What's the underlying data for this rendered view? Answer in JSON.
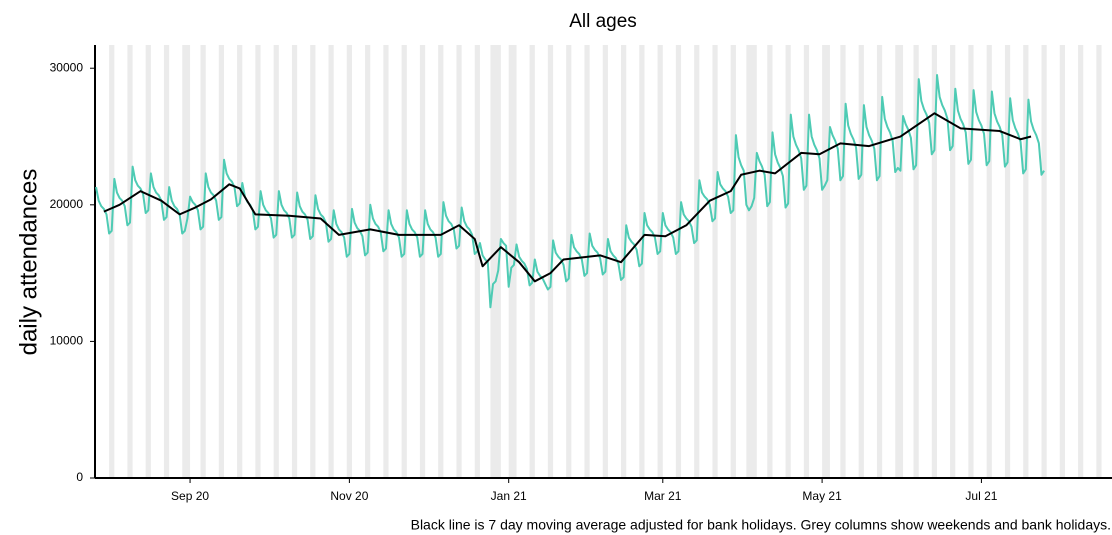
{
  "chart_data": {
    "type": "line",
    "title": "All ages",
    "ylabel": "daily attendances",
    "caption": "Black line is 7 day moving average adjusted for bank holidays. Grey columns show weekends and bank holidays.",
    "xlim": [
      -36.4,
      353
    ],
    "xticks": [
      {
        "value": 0,
        "label": "Sep 20"
      },
      {
        "value": 61,
        "label": "Nov 20"
      },
      {
        "value": 122,
        "label": "Jan 21"
      },
      {
        "value": 181,
        "label": "Mar 21"
      },
      {
        "value": 242,
        "label": "May 21"
      },
      {
        "value": 303,
        "label": "Jul 21"
      }
    ],
    "ylim": [
      0,
      31700
    ],
    "yticks": [
      0,
      10000,
      20000,
      30000
    ],
    "grid": false,
    "shade_color": "#ebebeb",
    "shaded_columns": [
      [
        -31,
        -29
      ],
      [
        -24,
        -22
      ],
      [
        -17,
        -15
      ],
      [
        -10,
        -8
      ],
      [
        -3,
        0
      ],
      [
        4,
        6
      ],
      [
        11,
        13
      ],
      [
        18,
        20
      ],
      [
        25,
        27
      ],
      [
        32,
        34
      ],
      [
        39,
        41
      ],
      [
        46,
        48
      ],
      [
        53,
        55
      ],
      [
        60,
        62
      ],
      [
        67,
        69
      ],
      [
        74,
        76
      ],
      [
        81,
        83
      ],
      [
        88,
        90
      ],
      [
        95,
        97
      ],
      [
        102,
        104
      ],
      [
        109,
        111
      ],
      [
        115,
        119
      ],
      [
        122,
        125
      ],
      [
        130,
        132
      ],
      [
        137,
        139
      ],
      [
        144,
        146
      ],
      [
        151,
        153
      ],
      [
        158,
        160
      ],
      [
        165,
        167
      ],
      [
        172,
        174
      ],
      [
        179,
        181
      ],
      [
        186,
        188
      ],
      [
        193,
        195
      ],
      [
        200,
        202
      ],
      [
        207,
        209
      ],
      [
        213,
        217
      ],
      [
        221,
        223
      ],
      [
        228,
        230
      ],
      [
        235,
        237
      ],
      [
        242,
        245
      ],
      [
        249,
        251
      ],
      [
        256,
        258
      ],
      [
        263,
        265
      ],
      [
        270,
        273
      ],
      [
        277,
        279
      ],
      [
        284,
        286
      ],
      [
        291,
        293
      ],
      [
        298,
        300
      ],
      [
        305,
        307
      ],
      [
        312,
        314
      ],
      [
        319,
        321
      ],
      [
        326,
        328
      ],
      [
        333,
        335
      ],
      [
        340,
        342
      ],
      [
        347,
        349
      ]
    ],
    "series": [
      {
        "color": "#4ecbb4",
        "x": [
          -36,
          -35,
          -34,
          -33,
          -32,
          -31,
          -30,
          -29,
          -28,
          -27,
          -26,
          -25,
          -24,
          -23,
          -22,
          -21,
          -20,
          -19,
          -18,
          -17,
          -16,
          -15,
          -14,
          -13,
          -12,
          -11,
          -10,
          -9,
          -8,
          -7,
          -6,
          -5,
          -4,
          -3,
          -2,
          -1,
          0,
          1,
          2,
          3,
          4,
          5,
          6,
          7,
          8,
          9,
          10,
          11,
          12,
          13,
          14,
          15,
          16,
          17,
          18,
          19,
          20,
          21,
          22,
          23,
          24,
          25,
          26,
          27,
          28,
          29,
          30,
          31,
          32,
          33,
          34,
          35,
          36,
          37,
          38,
          39,
          40,
          41,
          42,
          43,
          44,
          45,
          46,
          47,
          48,
          49,
          50,
          51,
          52,
          53,
          54,
          55,
          56,
          57,
          58,
          59,
          60,
          61,
          62,
          63,
          64,
          65,
          66,
          67,
          68,
          69,
          70,
          71,
          72,
          73,
          74,
          75,
          76,
          77,
          78,
          79,
          80,
          81,
          82,
          83,
          84,
          85,
          86,
          87,
          88,
          89,
          90,
          91,
          92,
          93,
          94,
          95,
          96,
          97,
          98,
          99,
          100,
          101,
          102,
          103,
          104,
          105,
          106,
          107,
          108,
          109,
          110,
          111,
          112,
          113,
          114,
          115,
          116,
          117,
          118,
          119,
          120,
          121,
          122,
          123,
          124,
          125,
          126,
          127,
          128,
          129,
          130,
          131,
          132,
          133,
          134,
          135,
          136,
          137,
          138,
          139,
          140,
          141,
          142,
          143,
          144,
          145,
          146,
          147,
          148,
          149,
          150,
          151,
          152,
          153,
          154,
          155,
          156,
          157,
          158,
          159,
          160,
          161,
          162,
          163,
          164,
          165,
          166,
          167,
          168,
          169,
          170,
          171,
          172,
          173,
          174,
          175,
          176,
          177,
          178,
          179,
          180,
          181,
          182,
          183,
          184,
          185,
          186,
          187,
          188,
          189,
          190,
          191,
          192,
          193,
          194,
          195,
          196,
          197,
          198,
          199,
          200,
          201,
          202,
          203,
          204,
          205,
          206,
          207,
          208,
          209,
          210,
          211,
          212,
          213,
          214,
          215,
          216,
          217,
          218,
          219,
          220,
          221,
          222,
          223,
          224,
          225,
          226,
          227,
          228,
          229,
          230,
          231,
          232,
          233,
          234,
          235,
          236,
          237,
          238,
          239,
          240,
          241,
          242,
          243,
          244,
          245,
          246,
          247,
          248,
          249,
          250,
          251,
          252,
          253,
          254,
          255,
          256,
          257,
          258,
          259,
          260,
          261,
          262,
          263,
          264,
          265,
          266,
          267,
          268,
          269,
          270,
          271,
          272,
          273,
          274,
          275,
          276,
          277,
          278,
          279,
          280,
          281,
          282,
          283,
          284,
          285,
          286,
          287,
          288,
          289,
          290,
          291,
          292,
          293,
          294,
          295,
          296,
          297,
          298,
          299,
          300,
          301,
          302,
          303,
          304,
          305,
          306,
          307,
          308,
          309,
          310,
          311,
          312,
          313,
          314,
          315,
          316,
          317,
          318,
          319,
          320,
          321,
          322,
          323,
          324,
          325,
          326,
          327
        ],
        "values": [
          21300,
          20300,
          19900,
          19700,
          19300,
          17900,
          18100,
          21900,
          20900,
          20500,
          20300,
          19900,
          18500,
          18700,
          22800,
          21800,
          21400,
          21200,
          20800,
          19400,
          19600,
          22300,
          21300,
          20900,
          20700,
          20300,
          18900,
          19100,
          21300,
          20300,
          19900,
          19700,
          19300,
          17900,
          18100,
          19000,
          20600,
          20200,
          20000,
          19600,
          18200,
          18400,
          22300,
          21300,
          20900,
          20700,
          20300,
          18900,
          19100,
          23300,
          22300,
          21900,
          21700,
          21300,
          19900,
          20100,
          21600,
          20600,
          20200,
          20000,
          19600,
          18200,
          18400,
          21000,
          20000,
          19600,
          19400,
          19000,
          17600,
          17800,
          21000,
          20000,
          19600,
          19400,
          19000,
          17600,
          17800,
          20900,
          19900,
          19500,
          19300,
          18900,
          17500,
          17700,
          20700,
          19700,
          19300,
          19100,
          18700,
          17300,
          17500,
          19600,
          18600,
          18200,
          18000,
          17600,
          16200,
          16400,
          19700,
          18700,
          18300,
          18100,
          17700,
          16300,
          16500,
          20000,
          19000,
          18600,
          18400,
          18000,
          16600,
          16800,
          19600,
          18600,
          18200,
          18000,
          17600,
          16200,
          16400,
          19600,
          18600,
          18200,
          18000,
          17600,
          16200,
          16400,
          19600,
          18600,
          18200,
          18000,
          17600,
          16200,
          16400,
          20200,
          19200,
          18800,
          18600,
          18200,
          16800,
          17000,
          19800,
          18800,
          18400,
          18200,
          17800,
          16400,
          16600,
          17200,
          16300,
          16000,
          15800,
          12500,
          14200,
          14400,
          15200,
          17500,
          17200,
          17000,
          14000,
          15400,
          15600,
          17100,
          16200,
          15900,
          15700,
          15300,
          14100,
          14300,
          16000,
          15100,
          14800,
          14600,
          14200,
          13800,
          14000,
          17400,
          16500,
          16200,
          16000,
          15600,
          14400,
          14600,
          17800,
          16900,
          16600,
          16400,
          16000,
          14800,
          15000,
          17900,
          17000,
          16700,
          16500,
          16100,
          14900,
          15100,
          17500,
          16600,
          16300,
          16100,
          15700,
          14500,
          14700,
          18500,
          17600,
          17300,
          17100,
          16700,
          15500,
          15700,
          19400,
          18500,
          18200,
          18000,
          17600,
          16400,
          16600,
          19400,
          18500,
          18200,
          18000,
          17600,
          16400,
          16600,
          20200,
          19300,
          19000,
          18800,
          18400,
          17200,
          17400,
          21800,
          20900,
          20600,
          20400,
          20000,
          18800,
          19000,
          22400,
          21500,
          21200,
          21000,
          20600,
          19400,
          19600,
          25100,
          23500,
          22900,
          22500,
          20000,
          19600,
          19900,
          20500,
          23800,
          23200,
          22800,
          22200,
          19900,
          20200,
          25300,
          23700,
          23100,
          22700,
          22100,
          19800,
          20100,
          26600,
          25000,
          24400,
          24000,
          23400,
          21100,
          21400,
          26600,
          25000,
          24400,
          24000,
          23400,
          21100,
          21400,
          21800,
          25700,
          25100,
          24700,
          24100,
          21800,
          22100,
          27400,
          25800,
          25200,
          24800,
          24200,
          21900,
          22200,
          27300,
          25700,
          25100,
          24700,
          24100,
          21800,
          22100,
          27900,
          26300,
          25700,
          25300,
          24700,
          22400,
          22700,
          22500,
          26500,
          25900,
          25500,
          24900,
          22600,
          22900,
          29200,
          27600,
          27000,
          26600,
          26000,
          23700,
          24000,
          29500,
          27900,
          27300,
          26900,
          26300,
          24000,
          24300,
          28500,
          26900,
          26300,
          25900,
          25300,
          23000,
          23300,
          28400,
          26800,
          26200,
          25800,
          25200,
          22900,
          23200,
          28300,
          26700,
          26100,
          25700,
          25100,
          22800,
          23100,
          27800,
          26200,
          25600,
          25200,
          24600,
          22300,
          22600,
          27700,
          26100,
          25500,
          25100,
          24500,
          22200,
          22500
        ]
      },
      {
        "color": "#000000",
        "x": [
          -33,
          -27,
          -19,
          -11,
          -4,
          2,
          8,
          15,
          19,
          25,
          38,
          50,
          57,
          69,
          80,
          96,
          103,
          109,
          112,
          119,
          126,
          132,
          138,
          143,
          157,
          165,
          174,
          182,
          190,
          199,
          207,
          211,
          218,
          224,
          234,
          241,
          249,
          260,
          272,
          285,
          295,
          310,
          318,
          322
        ],
        "values": [
          19500,
          20000,
          21000,
          20300,
          19300,
          19800,
          20400,
          21500,
          21200,
          19300,
          19200,
          19000,
          17800,
          18200,
          17800,
          17800,
          18500,
          17500,
          15500,
          16900,
          15800,
          14400,
          15000,
          16000,
          16300,
          15800,
          17800,
          17700,
          18500,
          20300,
          21000,
          22200,
          22500,
          22300,
          23800,
          23700,
          24500,
          24300,
          25000,
          26700,
          25600,
          25400,
          24800,
          25000
        ]
      }
    ]
  }
}
